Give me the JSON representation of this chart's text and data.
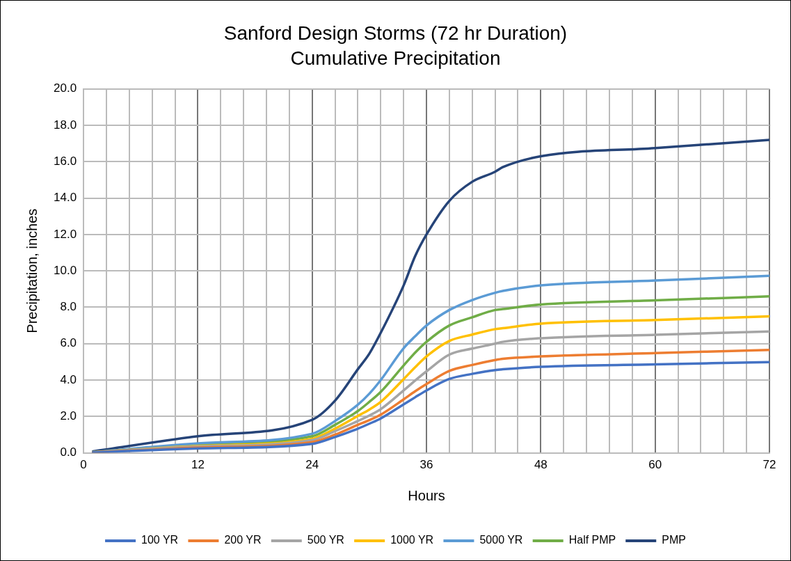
{
  "chart_data": {
    "type": "line",
    "title": "Sanford Design Storms (72 hr Duration)",
    "subtitle": "Cumulative Precipitation",
    "xlabel": "Hours",
    "ylabel": "Precipitation, inches",
    "x": [
      1,
      12,
      24,
      26.4,
      28.8,
      30,
      31.2,
      33.6,
      34.8,
      36,
      38.4,
      40.8,
      43.2,
      44,
      48,
      60,
      72
    ],
    "series": [
      {
        "name": "100 YR",
        "color": "#4472c4",
        "values": [
          0.02,
          0.24,
          0.49,
          0.87,
          1.33,
          1.6,
          1.89,
          2.66,
          3.05,
          3.43,
          4.06,
          4.34,
          4.55,
          4.59,
          4.73,
          4.86,
          4.99
        ]
      },
      {
        "name": "200 YR",
        "color": "#ed7d31",
        "values": [
          0.02,
          0.29,
          0.59,
          1.0,
          1.54,
          1.8,
          2.1,
          2.94,
          3.38,
          3.78,
          4.5,
          4.83,
          5.1,
          5.17,
          5.3,
          5.48,
          5.66
        ]
      },
      {
        "name": "500 YR",
        "color": "#a5a5a5",
        "values": [
          0.03,
          0.35,
          0.7,
          1.19,
          1.75,
          2.05,
          2.4,
          3.43,
          3.97,
          4.48,
          5.4,
          5.73,
          6.0,
          6.1,
          6.3,
          6.49,
          6.67
        ]
      },
      {
        "name": "1000 YR",
        "color": "#ffc000",
        "values": [
          0.03,
          0.38,
          0.77,
          1.33,
          2.03,
          2.38,
          2.8,
          4.05,
          4.7,
          5.3,
          6.15,
          6.5,
          6.8,
          6.85,
          7.1,
          7.3,
          7.5
        ]
      },
      {
        "name": "5000 YR",
        "color": "#5b9bd5",
        "values": [
          0.04,
          0.52,
          1.05,
          1.75,
          2.65,
          3.25,
          4.0,
          5.75,
          6.4,
          7.0,
          7.85,
          8.4,
          8.8,
          8.9,
          9.2,
          9.47,
          9.73
        ]
      },
      {
        "name": "Half PMP",
        "color": "#70ad47",
        "values": [
          0.04,
          0.46,
          0.91,
          1.54,
          2.3,
          2.8,
          3.35,
          4.8,
          5.5,
          6.1,
          7.0,
          7.45,
          7.85,
          7.9,
          8.15,
          8.38,
          8.6
        ]
      },
      {
        "name": "PMP",
        "color": "#264478",
        "values": [
          0.08,
          0.91,
          1.82,
          2.87,
          4.6,
          5.45,
          6.6,
          9.2,
          10.8,
          12.0,
          13.85,
          14.9,
          15.45,
          15.7,
          16.3,
          16.75,
          17.2
        ]
      }
    ],
    "xlim": [
      0,
      72
    ],
    "xticks": [
      0,
      {
        "value": 2.4,
        "label": null
      },
      {
        "value": 4.8,
        "label": null
      },
      {
        "value": 7.2,
        "label": null
      },
      {
        "value": 9.6,
        "label": null
      },
      12,
      {
        "value": 14.4,
        "label": null
      },
      {
        "value": 16.8,
        "label": null
      },
      {
        "value": 19.2,
        "label": null
      },
      {
        "value": 21.6,
        "label": null
      },
      24,
      {
        "value": 26.4,
        "label": null
      },
      {
        "value": 28.8,
        "label": null
      },
      {
        "value": 31.2,
        "label": null
      },
      {
        "value": 33.6,
        "label": null
      },
      36,
      {
        "value": 38.4,
        "label": null
      },
      {
        "value": 40.8,
        "label": null
      },
      {
        "value": 43.2,
        "label": null
      },
      {
        "value": 45.6,
        "label": null
      },
      48,
      {
        "value": 50.4,
        "label": null
      },
      {
        "value": 52.8,
        "label": null
      },
      {
        "value": 55.2,
        "label": null
      },
      {
        "value": 57.6,
        "label": null
      },
      60,
      {
        "value": 62.4,
        "label": null
      },
      {
        "value": 64.8,
        "label": null
      },
      {
        "value": 67.2,
        "label": null
      },
      {
        "value": 69.6,
        "label": null
      },
      72
    ],
    "ylim": [
      0,
      20
    ],
    "yticks": [
      {
        "value": 0,
        "label": "0.0"
      },
      {
        "value": 2,
        "label": "2.0"
      },
      {
        "value": 4,
        "label": "4.0"
      },
      {
        "value": 6,
        "label": "6.0"
      },
      {
        "value": 8,
        "label": "8.0"
      },
      {
        "value": 10,
        "label": "10.0"
      },
      {
        "value": 12,
        "label": "12.0"
      },
      {
        "value": 14,
        "label": "14.0"
      },
      {
        "value": 16,
        "label": "16.0"
      },
      {
        "value": 18,
        "label": "18.0"
      },
      {
        "value": 20,
        "label": "20.0"
      }
    ],
    "grid": true,
    "legend": "bottom",
    "marker": "none",
    "line_style": "solid"
  }
}
